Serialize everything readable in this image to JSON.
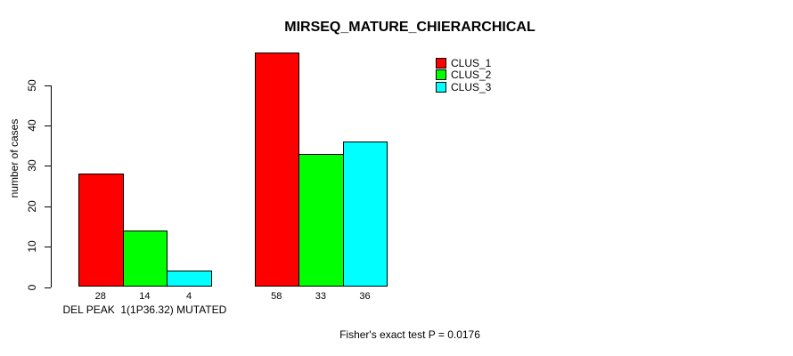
{
  "chart_data": {
    "type": "bar",
    "title": "MIRSEQ_MATURE_CHIERARCHICAL",
    "ylabel": "number of cases",
    "xlabel": "",
    "ylim": [
      0,
      58
    ],
    "yticks": [
      0,
      10,
      20,
      30,
      40,
      50
    ],
    "grid": false,
    "legend_position": "top-right-inside",
    "categories": [
      "DEL PEAK  1(1P36.32) MUTATED",
      ""
    ],
    "series": [
      {
        "name": "CLUS_1",
        "color": "#FF0000",
        "values": [
          28,
          58
        ]
      },
      {
        "name": "CLUS_2",
        "color": "#00FF00",
        "values": [
          14,
          33
        ]
      },
      {
        "name": "CLUS_3",
        "color": "#00FFFF",
        "values": [
          4,
          36
        ]
      }
    ],
    "bar_value_labels": [
      [
        "28",
        "14",
        "4"
      ],
      [
        "58",
        "33",
        "36"
      ]
    ],
    "annotation": "Fisher's exact test P = 0.0176"
  },
  "colors": {
    "background": "#FFFFFF",
    "axis": "#000000",
    "bar_border": "#000000",
    "clus_1": "#FF0000",
    "clus_2": "#00FF00",
    "clus_3": "#00FFFF"
  }
}
